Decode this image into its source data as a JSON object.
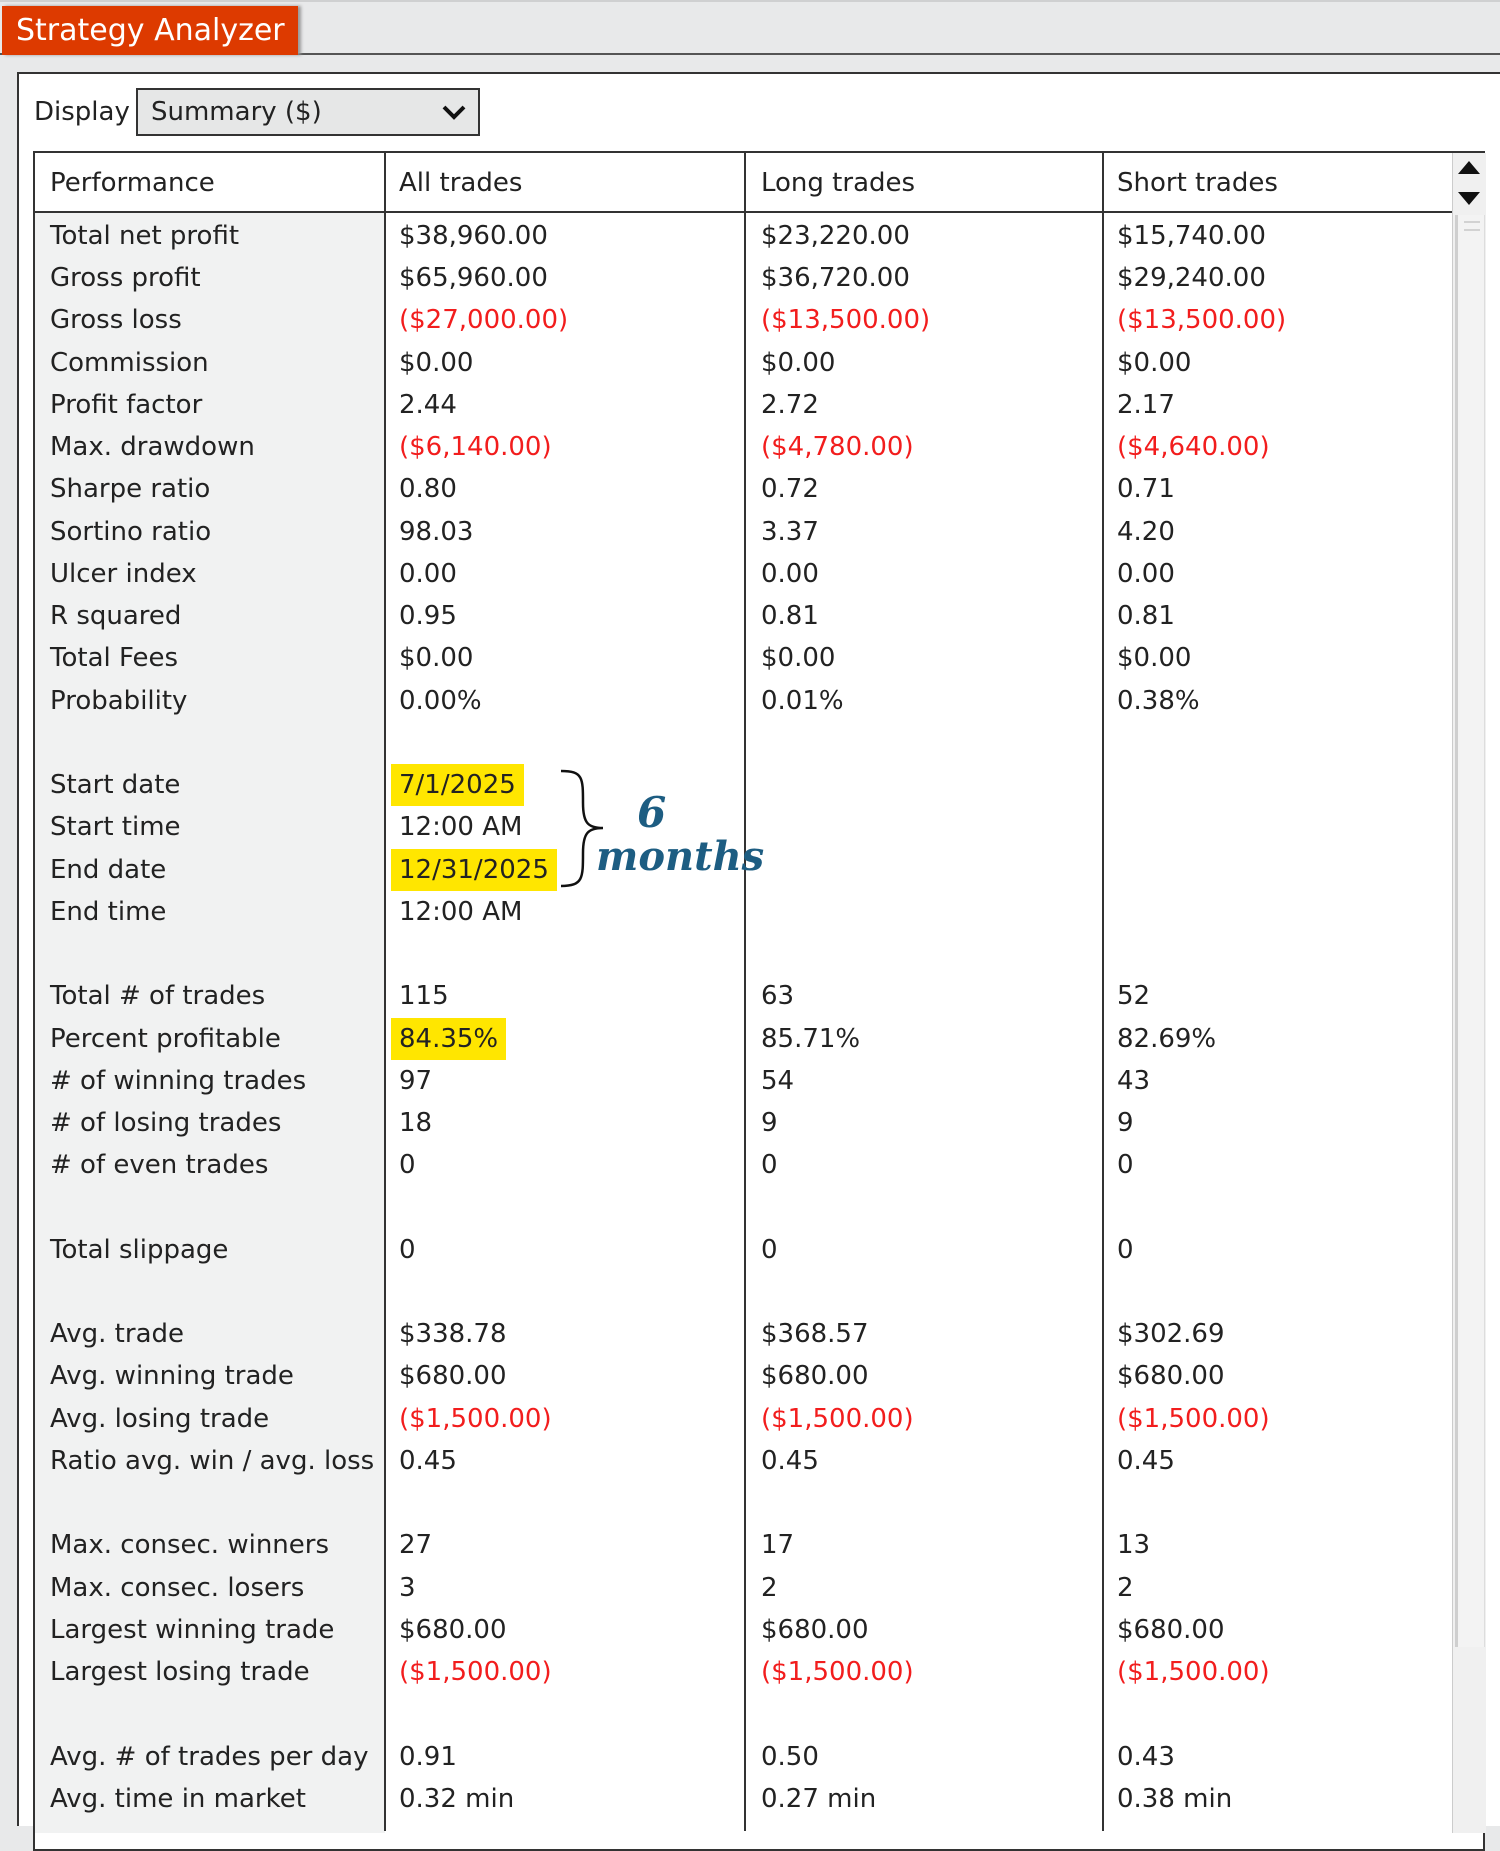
{
  "window": {
    "tab_title": "Strategy Analyzer"
  },
  "display": {
    "label": "Display",
    "selected": "Summary ($)"
  },
  "table": {
    "columns": [
      "Performance",
      "All trades",
      "Long trades",
      "Short trades"
    ],
    "rows": [
      {
        "label": "Total net profit",
        "values": [
          "$38,960.00",
          "$23,220.00",
          "$15,740.00"
        ]
      },
      {
        "label": "Gross profit",
        "values": [
          "$65,960.00",
          "$36,720.00",
          "$29,240.00"
        ]
      },
      {
        "label": "Gross loss",
        "values": [
          "($27,000.00)",
          "($13,500.00)",
          "($13,500.00)"
        ]
      },
      {
        "label": "Commission",
        "values": [
          "$0.00",
          "$0.00",
          "$0.00"
        ]
      },
      {
        "label": "Profit factor",
        "values": [
          "2.44",
          "2.72",
          "2.17"
        ]
      },
      {
        "label": "Max. drawdown",
        "values": [
          "($6,140.00)",
          "($4,780.00)",
          "($4,640.00)"
        ]
      },
      {
        "label": "Sharpe ratio",
        "values": [
          "0.80",
          "0.72",
          "0.71"
        ]
      },
      {
        "label": "Sortino ratio",
        "values": [
          "98.03",
          "3.37",
          "4.20"
        ]
      },
      {
        "label": "Ulcer index",
        "values": [
          "0.00",
          "0.00",
          "0.00"
        ]
      },
      {
        "label": "R squared",
        "values": [
          "0.95",
          "0.81",
          "0.81"
        ]
      },
      {
        "label": "Total Fees",
        "values": [
          "$0.00",
          "$0.00",
          "$0.00"
        ]
      },
      {
        "label": "Probability",
        "values": [
          "0.00%",
          "0.01%",
          "0.38%"
        ]
      },
      null,
      {
        "label": "Start date",
        "values": [
          "7/1/2025",
          "",
          ""
        ],
        "highlighted": true
      },
      {
        "label": "Start time",
        "values": [
          "12:00 AM",
          "",
          ""
        ]
      },
      {
        "label": "End date",
        "values": [
          "12/31/2025",
          "",
          ""
        ],
        "highlighted": true
      },
      {
        "label": "End time",
        "values": [
          "12:00 AM",
          "",
          ""
        ]
      },
      null,
      {
        "label": "Total # of trades",
        "values": [
          "115",
          "63",
          "52"
        ]
      },
      {
        "label": "Percent profitable",
        "values": [
          "84.35%",
          "85.71%",
          "82.69%"
        ],
        "highlighted": true
      },
      {
        "label": "# of winning trades",
        "values": [
          "97",
          "54",
          "43"
        ]
      },
      {
        "label": "# of losing trades",
        "values": [
          "18",
          "9",
          "9"
        ]
      },
      {
        "label": "# of even trades",
        "values": [
          "0",
          "0",
          "0"
        ]
      },
      null,
      {
        "label": "Total slippage",
        "values": [
          "0",
          "0",
          "0"
        ]
      },
      null,
      {
        "label": "Avg. trade",
        "values": [
          "$338.78",
          "$368.57",
          "$302.69"
        ]
      },
      {
        "label": "Avg. winning trade",
        "values": [
          "$680.00",
          "$680.00",
          "$680.00"
        ]
      },
      {
        "label": "Avg. losing trade",
        "values": [
          "($1,500.00)",
          "($1,500.00)",
          "($1,500.00)"
        ]
      },
      {
        "label": "Ratio avg. win / avg. loss",
        "values": [
          "0.45",
          "0.45",
          "0.45"
        ]
      },
      null,
      {
        "label": "Max. consec. winners",
        "values": [
          "27",
          "17",
          "13"
        ]
      },
      {
        "label": "Max. consec. losers",
        "values": [
          "3",
          "2",
          "2"
        ]
      },
      {
        "label": "Largest winning trade",
        "values": [
          "$680.00",
          "$680.00",
          "$680.00"
        ]
      },
      {
        "label": "Largest losing trade",
        "values": [
          "($1,500.00)",
          "($1,500.00)",
          "($1,500.00)"
        ]
      },
      null,
      {
        "label": "Avg. # of trades per day",
        "values": [
          "0.91",
          "0.50",
          "0.43"
        ]
      },
      {
        "label": "Avg. time in market",
        "values": [
          "0.32 min",
          "0.27 min",
          "0.38 min"
        ]
      }
    ]
  },
  "annotation": {
    "line1": "6",
    "line2": "months"
  },
  "colors": {
    "tab": "#dd3a00",
    "negative": "#f21d1d",
    "highlight": "#ffe600",
    "annotation": "#1d5d82"
  }
}
